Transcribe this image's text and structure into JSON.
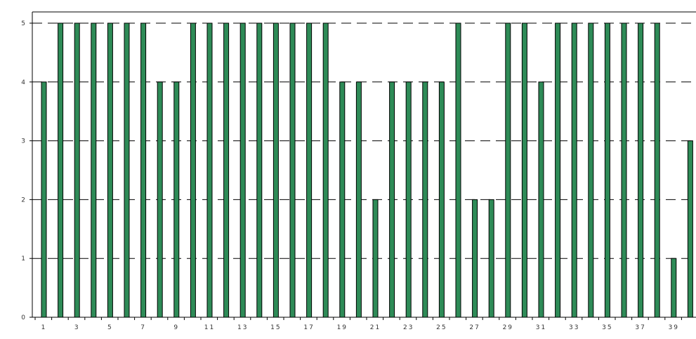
{
  "chart_data": {
    "type": "bar",
    "title": "",
    "xlabel": "",
    "ylabel": "",
    "categories": [
      "1",
      "2",
      "3",
      "4",
      "5",
      "6",
      "7",
      "8",
      "9",
      "10",
      "11",
      "12",
      "13",
      "14",
      "15",
      "16",
      "17",
      "18",
      "19",
      "20",
      "21",
      "22",
      "23",
      "24",
      "25",
      "26",
      "27",
      "28",
      "29",
      "30",
      "31",
      "32",
      "33",
      "34",
      "35",
      "36",
      "37",
      "38",
      "39",
      "40"
    ],
    "x_tick_labels": [
      "1",
      "3",
      "5",
      "7",
      "9",
      "11",
      "13",
      "15",
      "17",
      "19",
      "21",
      "23",
      "25",
      "27",
      "29",
      "31",
      "33",
      "35",
      "37",
      "39"
    ],
    "y_tick_labels": [
      "0",
      "1",
      "2",
      "3",
      "4",
      "5"
    ],
    "values": [
      4,
      5,
      5,
      5,
      5,
      5,
      5,
      4,
      4,
      5,
      5,
      5,
      5,
      5,
      5,
      5,
      5,
      5,
      4,
      4,
      2,
      4,
      4,
      4,
      4,
      5,
      2,
      2,
      5,
      5,
      4,
      5,
      5,
      5,
      5,
      5,
      5,
      5,
      1,
      3
    ],
    "ylim": [
      0,
      5
    ],
    "grid": "horizontal dashed",
    "legend": "none",
    "bar_color": "#2e8b57",
    "bar_outline_color": "#000000",
    "gridline_color": "#000000"
  }
}
